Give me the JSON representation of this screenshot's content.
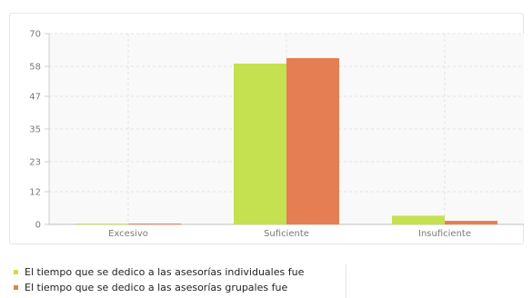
{
  "chart_data": {
    "type": "bar",
    "categories": [
      "Excesivo",
      "Suficiente",
      "Insuficiente"
    ],
    "series": [
      {
        "name": "El tiempo que se dedico a las asesorías individuales fue",
        "color": "#c5e14f",
        "values": [
          0.3,
          59,
          3.2
        ]
      },
      {
        "name": "El tiempo que se dedico a las asesorías grupales fue",
        "color": "#e57e53",
        "values": [
          0.3,
          61,
          1.3
        ]
      }
    ],
    "yticks": [
      "0",
      "12",
      "23",
      "35",
      "47",
      "58",
      "70"
    ],
    "ylim": [
      0,
      70
    ],
    "grid": true,
    "legend": "bottom-left"
  }
}
